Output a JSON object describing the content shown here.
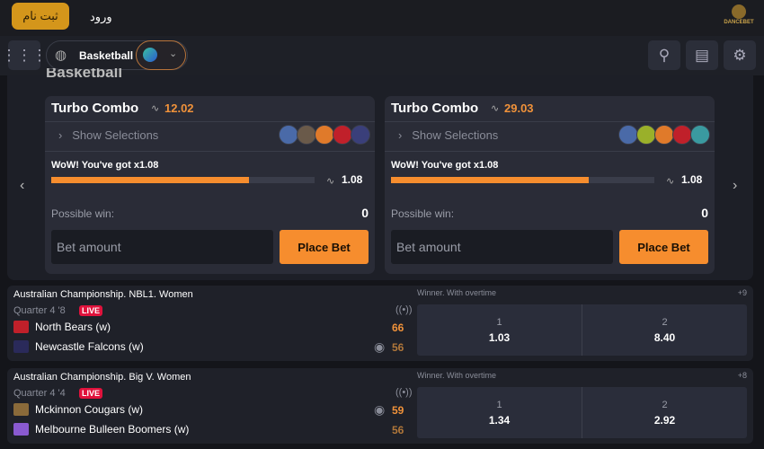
{
  "header": {
    "register": "ثبت نام",
    "login": "ورود",
    "logo": "DANCEBET"
  },
  "nav": {
    "sport": "Basketball",
    "icons": [
      "grid-icon",
      "search-icon",
      "betslip-icon",
      "settings-icon"
    ]
  },
  "section_title": "Basketball",
  "combos": [
    {
      "title": "Turbo Combo",
      "odds": "12.02",
      "show": "Show Selections",
      "wow": "WoW! You've got x1.08",
      "progress": 0.75,
      "mult": "1.08",
      "possible_label": "Possible win:",
      "possible": "0",
      "bet_placeholder": "Bet amount",
      "place": "Place Bet",
      "logo_colors": [
        "#4a6aa8",
        "#6a5a4a",
        "#e07a2a",
        "#c0202a",
        "#3a3f7a"
      ]
    },
    {
      "title": "Turbo Combo",
      "odds": "29.03",
      "show": "Show Selections",
      "wow": "WoW! You've got x1.08",
      "progress": 0.75,
      "mult": "1.08",
      "possible_label": "Possible win:",
      "possible": "0",
      "bet_placeholder": "Bet amount",
      "place": "Place Bet",
      "logo_colors": [
        "#4a6aa8",
        "#9ab02a",
        "#e07a2a",
        "#c0202a",
        "#3a9aa0"
      ]
    }
  ],
  "matches": [
    {
      "league": "Australian Championship. NBL1. Women",
      "period": "Quarter 4 '8",
      "live": "LIVE",
      "team1": "North Bears (w)",
      "team2": "Newcastle Falcons (w)",
      "score1": "66",
      "score2": "56",
      "market": "Winner. With overtime",
      "more": "+9",
      "o1_label": "1",
      "o1": "1.03",
      "o2_label": "2",
      "o2": "8.40"
    },
    {
      "league": "Australian Championship. Big V. Women",
      "period": "Quarter 4 '4",
      "live": "LIVE",
      "team1": "Mckinnon Cougars (w)",
      "team2": "Melbourne Bulleen Boomers (w)",
      "score1": "59",
      "score2": "56",
      "market": "Winner. With overtime",
      "more": "+8",
      "o1_label": "1",
      "o1": "1.34",
      "o2_label": "2",
      "o2": "2.92"
    }
  ],
  "colors": {
    "accent": "#f68d2e",
    "register": "#d4961b",
    "live": "#e0123c"
  }
}
